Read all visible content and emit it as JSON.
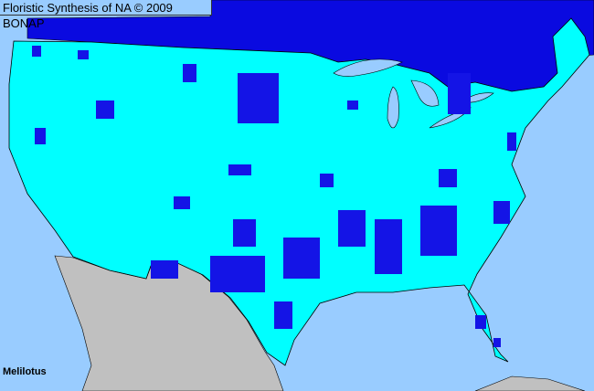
{
  "title": "Floristic Synthesis of NA © 2009 BONAP",
  "taxon_label": "Melilotus",
  "colors": {
    "ocean": "#99ccff",
    "present_in_state": "#00ffff",
    "present_in_county": "#1414e6",
    "canada": "#0a0ae0",
    "mexico": "#c0c0c0",
    "borders": "#000000"
  }
}
